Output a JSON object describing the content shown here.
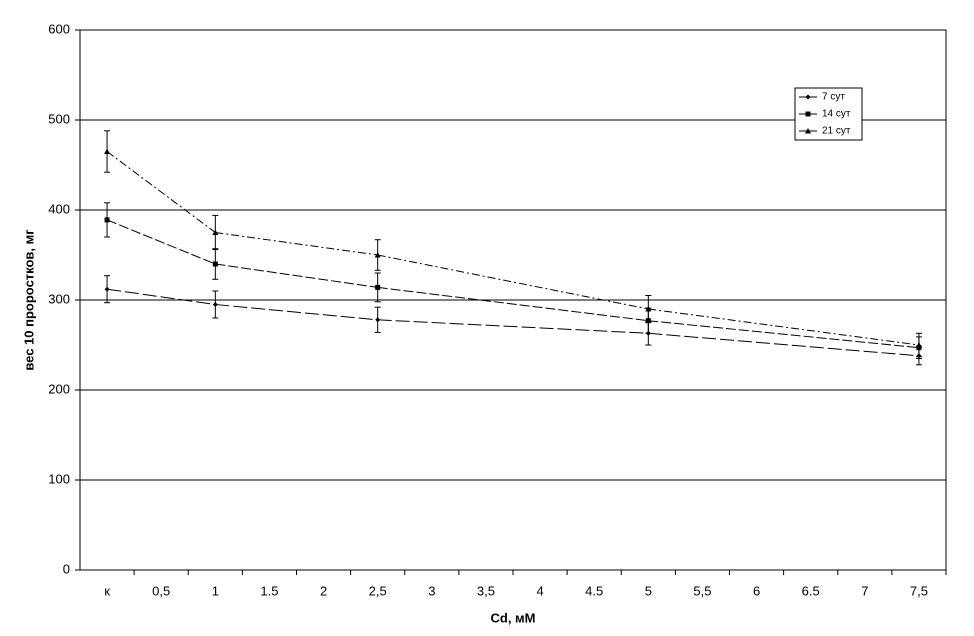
{
  "chart_data": {
    "type": "line",
    "x_label": "Cd, мМ",
    "y_label": "вес 10 проростков, мг",
    "categories": [
      "к",
      "0,5",
      "1",
      "1.5",
      "2",
      "2,5",
      "3",
      "3,5",
      "4",
      "4.5",
      "5",
      "5,5",
      "6",
      "6.5",
      "7",
      "7,5"
    ],
    "series": [
      {
        "name": "7 сут",
        "color": "#000000",
        "marker": "diamond",
        "values": [
          312,
          null,
          295,
          null,
          null,
          278,
          null,
          null,
          null,
          null,
          263,
          null,
          null,
          null,
          null,
          238
        ],
        "errors": [
          15,
          null,
          15,
          null,
          null,
          14,
          null,
          null,
          null,
          null,
          13,
          null,
          null,
          null,
          null,
          10
        ]
      },
      {
        "name": "14 сут",
        "color": "#000000",
        "marker": "square",
        "values": [
          389,
          null,
          340,
          null,
          null,
          314,
          null,
          null,
          null,
          null,
          277,
          null,
          null,
          null,
          null,
          247
        ],
        "errors": [
          19,
          null,
          17,
          null,
          null,
          16,
          null,
          null,
          null,
          null,
          14,
          null,
          null,
          null,
          null,
          12
        ]
      },
      {
        "name": "21 сут",
        "color": "#000000",
        "marker": "triangle",
        "values": [
          465,
          null,
          375,
          null,
          null,
          350,
          null,
          null,
          null,
          null,
          290,
          null,
          null,
          null,
          null,
          250
        ],
        "errors": [
          23,
          null,
          19,
          null,
          null,
          17,
          null,
          null,
          null,
          null,
          15,
          null,
          null,
          null,
          null,
          13
        ]
      }
    ],
    "ylim": [
      0,
      600
    ],
    "yticks": [
      0,
      100,
      200,
      300,
      400,
      500,
      600
    ],
    "grid": true,
    "legend": "upper right"
  }
}
